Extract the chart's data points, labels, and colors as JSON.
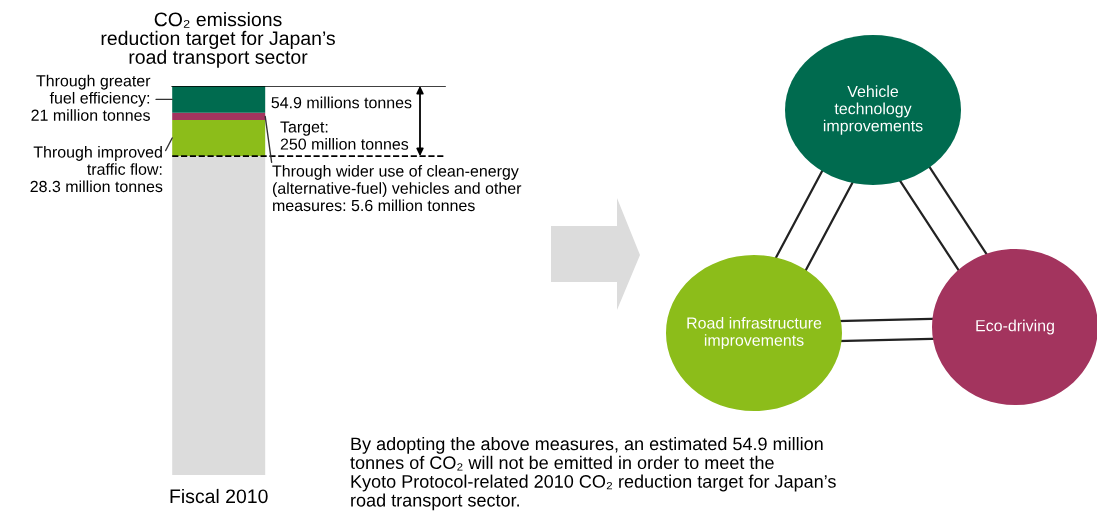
{
  "chart_data": {
    "type": "bar",
    "title": "CO₂ emissions\nreduction target for Japan’s\nroad transport sector",
    "categories": [
      "Fiscal 2010"
    ],
    "stacked": true,
    "series": [
      {
        "color": "#dcdcdc",
        "values": [
          250
        ],
        "value_labels": [
          "Target:\n250 million tonnes"
        ]
      },
      {
        "color": "#8cbd1a",
        "values": [
          28.3
        ],
        "value_labels": [
          "Through improved\ntraffic flow:\n28.3 million tonnes"
        ]
      },
      {
        "color": "#a3345e",
        "values": [
          5.6
        ],
        "value_labels": [
          "Through wider use of clean-energy\n(alternative-fuel) vehicles and other\nmeasures: 5.6 million tonnes"
        ]
      },
      {
        "color": "#006b4f",
        "values": [
          21
        ],
        "value_labels": [
          "Through greater\nfuel efficiency:\n21 million tonnes"
        ]
      }
    ],
    "ylim": [
      0,
      304.9
    ],
    "tick_labels": "x",
    "grid": false,
    "legend": false,
    "ref_lines": [
      {
        "axis": "y",
        "value": 250,
        "color": "#000000",
        "line_style": "dashed"
      },
      {
        "axis": "y",
        "value": 304.9,
        "color": "#000000",
        "line_style": "solid"
      }
    ],
    "annotations": [
      "54.9 millions tonnes",
      "Vehicle\ntechnology\nimprovements",
      "Road infrastructure\nimprovements",
      "Eco-driving",
      "By adopting the above measures, an estimated 54.9 million\ntonnes of CO₂ will not be emitted in order to meet the\nKyoto Protocol-related 2010 CO₂ reduction target for Japan’s\nroad transport sector."
    ]
  }
}
